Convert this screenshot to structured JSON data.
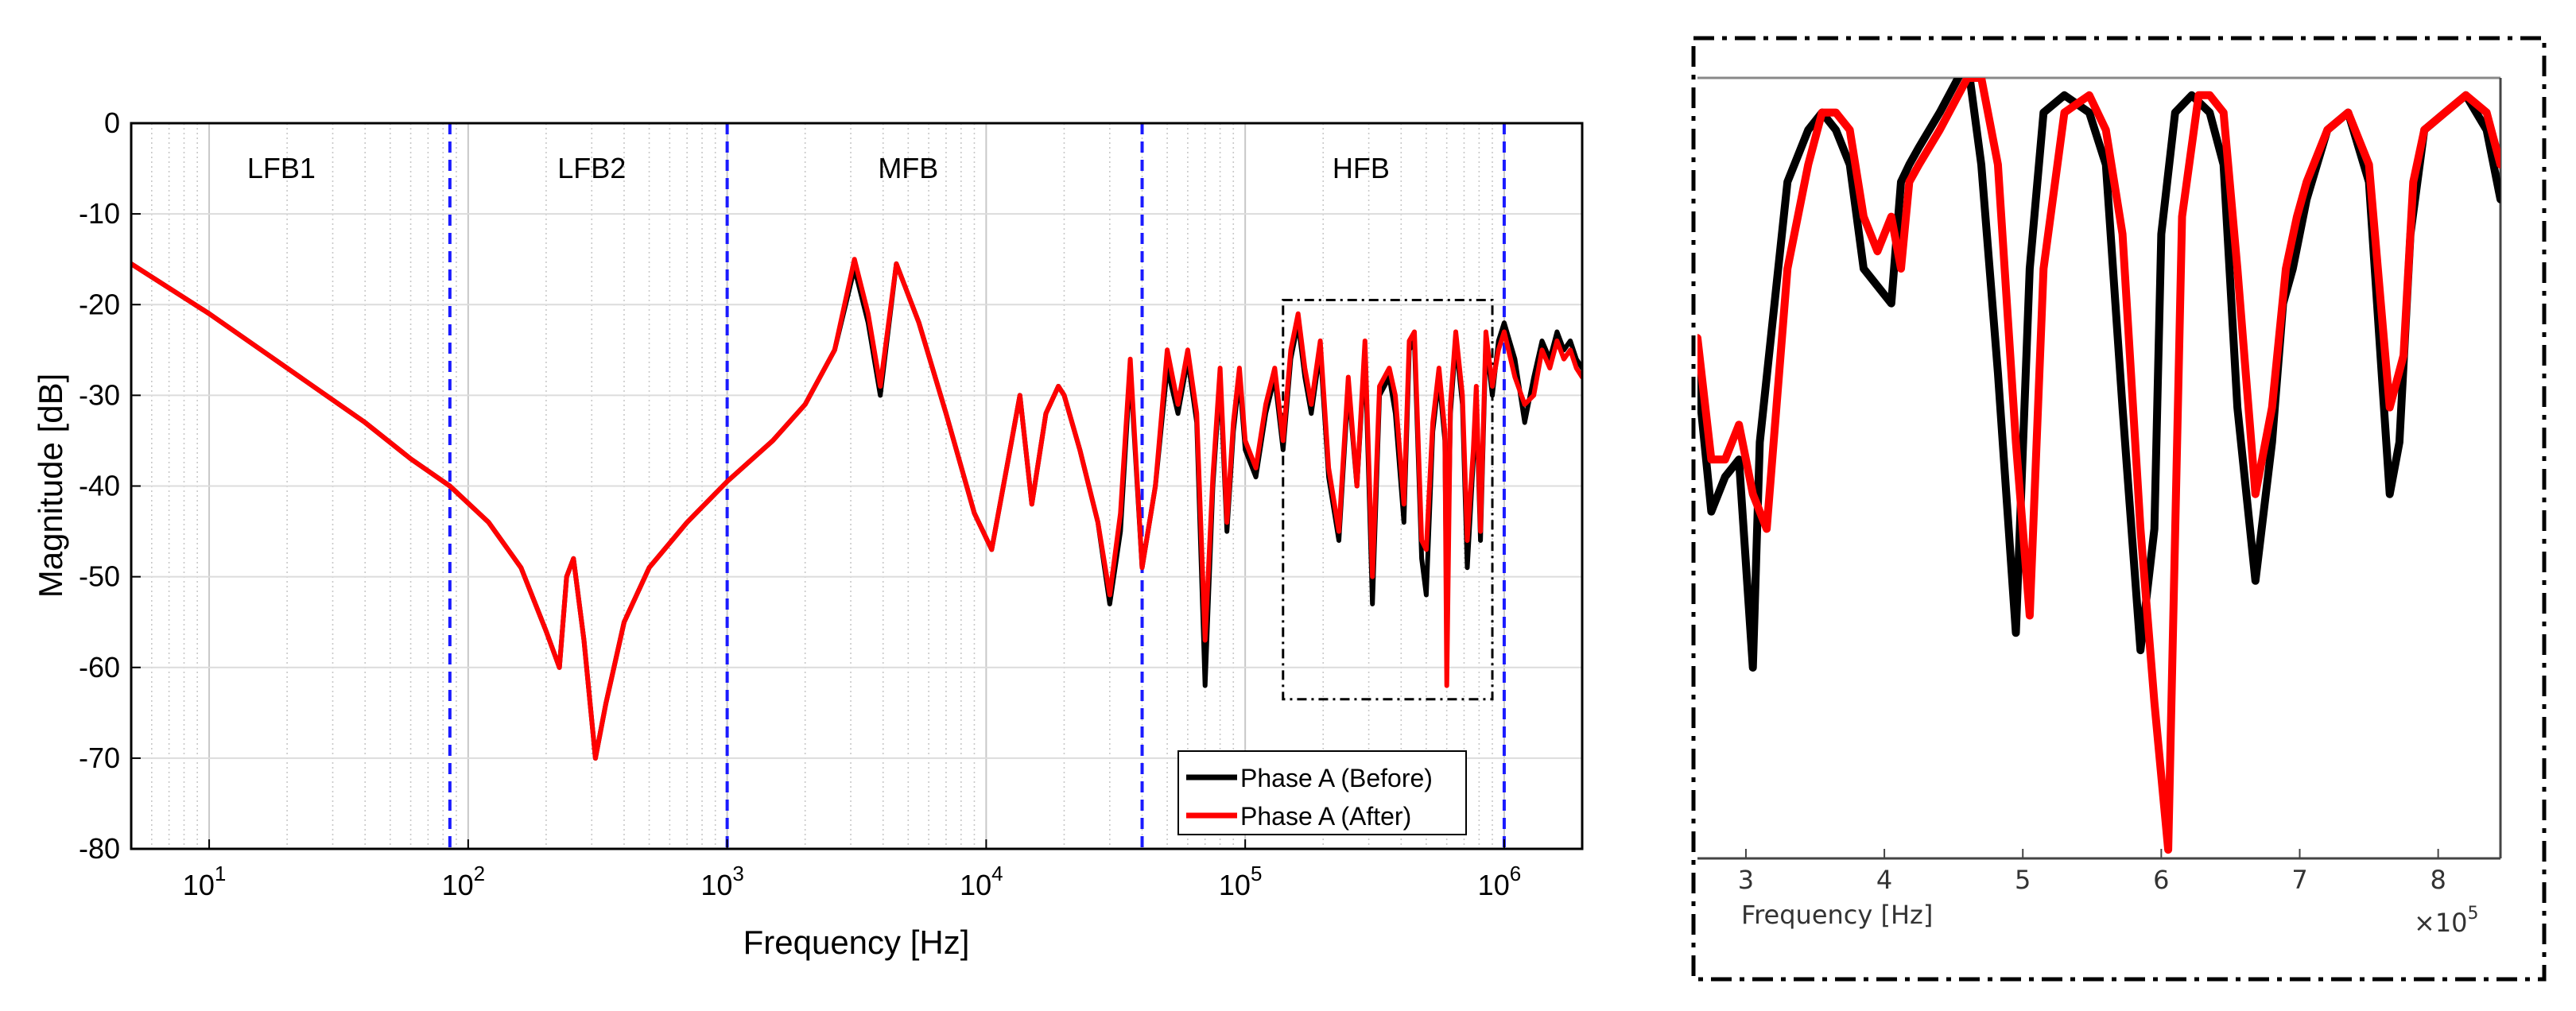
{
  "chart_data": [
    {
      "type": "line",
      "title": "",
      "xlabel": "Frequency [Hz]",
      "ylabel": "Magnitude [dB]",
      "xscale": "log",
      "xlim": [
        5,
        2000000
      ],
      "ylim": [
        -80,
        0
      ],
      "grid": true,
      "x_ticks": [
        {
          "value": 10,
          "base": "10",
          "exp": "1"
        },
        {
          "value": 100,
          "base": "10",
          "exp": "2"
        },
        {
          "value": 1000,
          "base": "10",
          "exp": "3"
        },
        {
          "value": 10000,
          "base": "10",
          "exp": "4"
        },
        {
          "value": 100000,
          "base": "10",
          "exp": "5"
        },
        {
          "value": 1000000,
          "base": "10",
          "exp": "6"
        }
      ],
      "y_ticks": [
        0,
        -10,
        -20,
        -30,
        -40,
        -50,
        -60,
        -70,
        -80
      ],
      "y_tick_labels": [
        "0",
        "-10",
        "-20",
        "-30",
        "-40",
        "-50",
        "-60",
        "-70",
        "-80"
      ],
      "band_boundaries_hz": [
        85,
        1000,
        40000,
        1000000
      ],
      "band_labels": [
        {
          "text": "LFB1",
          "freq_hz": 19,
          "db": -5
        },
        {
          "text": "LFB2",
          "freq_hz": 300,
          "db": -5
        },
        {
          "text": "MFB",
          "freq_hz": 5000,
          "db": -5
        },
        {
          "text": "HFB",
          "freq_hz": 280000,
          "db": -5
        }
      ],
      "zoom_box": {
        "x_range_hz": [
          140000,
          900000
        ],
        "y_range_db": [
          -63.5,
          -19.5
        ]
      },
      "legend": {
        "position": "bottom-right",
        "entries": [
          "Phase A (Before)",
          "Phase A (After)"
        ]
      },
      "series": [
        {
          "name": "Phase A (Before)",
          "color": "#000000",
          "x": [
            5,
            10,
            20,
            40,
            60,
            85,
            120,
            160,
            200,
            225,
            240,
            255,
            280,
            310,
            340,
            400,
            500,
            700,
            1000,
            1500,
            2000,
            2600,
            3100,
            3500,
            3900,
            4500,
            5500,
            7000,
            9000,
            10500,
            12000,
            13500,
            15000,
            17000,
            19000,
            20000,
            23000,
            27000,
            30000,
            33000,
            36000,
            40000,
            45000,
            50000,
            55000,
            60000,
            65000,
            70000,
            75000,
            80000,
            85000,
            90000,
            95000,
            100000,
            110000,
            120000,
            130000,
            140000,
            150000,
            160000,
            170000,
            180000,
            195000,
            210000,
            230000,
            250000,
            270000,
            290000,
            310000,
            330000,
            360000,
            380000,
            410000,
            430000,
            450000,
            480000,
            500000,
            530000,
            560000,
            590000,
            600000,
            620000,
            650000,
            690000,
            720000,
            760000,
            780000,
            810000,
            850000,
            900000,
            950000,
            1000000,
            1100000,
            1200000,
            1300000,
            1400000,
            1500000,
            1600000,
            1700000,
            1800000,
            1900000,
            2000000
          ],
          "y": [
            -15.5,
            -21,
            -27,
            -33,
            -37,
            -40,
            -44,
            -49,
            -56,
            -60,
            -50,
            -48,
            -57,
            -70,
            -64,
            -55,
            -49,
            -44,
            -39.5,
            -35,
            -31,
            -25,
            -16,
            -22,
            -30,
            -15.5,
            -22,
            -32,
            -43,
            -47,
            -38,
            -30,
            -42,
            -32,
            -29,
            -30,
            -36,
            -44,
            -53,
            -45,
            -27,
            -49,
            -40,
            -27,
            -32,
            -26,
            -33,
            -62,
            -40,
            -28,
            -45,
            -34,
            -28,
            -36,
            -39,
            -32,
            -28,
            -36,
            -26,
            -22,
            -28,
            -32,
            -25,
            -39,
            -46,
            -29,
            -40,
            -25,
            -53,
            -30,
            -28,
            -32,
            -44,
            -25,
            -24,
            -48,
            -52,
            -34,
            -28,
            -35,
            -55,
            -32,
            -24,
            -31,
            -49,
            -37,
            -30,
            -46,
            -24,
            -30,
            -24,
            -22,
            -26,
            -33,
            -28,
            -24,
            -26,
            -23,
            -25,
            -24,
            -26,
            -27
          ]
        },
        {
          "name": "Phase A (After)",
          "color": "#ff0000",
          "x": [
            5,
            10,
            20,
            40,
            60,
            85,
            120,
            160,
            200,
            225,
            240,
            255,
            280,
            310,
            340,
            400,
            500,
            700,
            1000,
            1500,
            2000,
            2600,
            3100,
            3500,
            3900,
            4500,
            5500,
            7000,
            9000,
            10500,
            12000,
            13500,
            15000,
            17000,
            19000,
            20000,
            23000,
            27000,
            30000,
            33000,
            36000,
            40000,
            45000,
            50000,
            55000,
            60000,
            65000,
            70000,
            75000,
            80000,
            85000,
            90000,
            95000,
            100000,
            110000,
            120000,
            130000,
            140000,
            150000,
            160000,
            170000,
            180000,
            195000,
            210000,
            230000,
            250000,
            270000,
            290000,
            310000,
            330000,
            360000,
            380000,
            410000,
            430000,
            450000,
            480000,
            500000,
            530000,
            560000,
            590000,
            600000,
            620000,
            650000,
            690000,
            720000,
            760000,
            780000,
            810000,
            850000,
            900000,
            950000,
            1000000,
            1100000,
            1200000,
            1300000,
            1400000,
            1500000,
            1600000,
            1700000,
            1800000,
            1900000,
            2000000
          ],
          "y": [
            -15.5,
            -21,
            -27,
            -33,
            -37,
            -40,
            -44,
            -49,
            -56,
            -60,
            -50,
            -48,
            -57,
            -70,
            -64,
            -55,
            -49,
            -44,
            -39.5,
            -35,
            -31,
            -25,
            -15,
            -21,
            -29,
            -15.5,
            -22,
            -32,
            -43,
            -47,
            -38,
            -30,
            -42,
            -32,
            -29,
            -30,
            -36,
            -44,
            -52,
            -43,
            -26,
            -49,
            -40,
            -25,
            -31,
            -25,
            -32,
            -57,
            -39,
            -27,
            -44,
            -33,
            -27,
            -35,
            -38,
            -31,
            -27,
            -35,
            -25,
            -21,
            -27,
            -31,
            -24,
            -38,
            -45,
            -28,
            -40,
            -24,
            -50,
            -29,
            -27,
            -30,
            -42,
            -24,
            -23,
            -46,
            -47,
            -33,
            -27,
            -34,
            -62,
            -31,
            -23,
            -30,
            -46,
            -36,
            -29,
            -45,
            -23,
            -29,
            -25,
            -23,
            -28,
            -31,
            -30,
            -25,
            -27,
            -24,
            -26,
            -25,
            -27,
            -28
          ]
        }
      ]
    },
    {
      "type": "line",
      "title": "",
      "xlabel": "Frequency [Hz]",
      "x_multiplier_label": "×10",
      "x_multiplier_exp": "5",
      "xlim": [
        2.65,
        8.45
      ],
      "ylim": [
        -64,
        -19
      ],
      "x_ticks": [
        3,
        4,
        5,
        6,
        7,
        8
      ],
      "x_tick_labels": [
        "3",
        "4",
        "5",
        "6",
        "7",
        "8"
      ],
      "series": [
        {
          "name": "Phase A (Before)",
          "color": "#000000",
          "x": [
            2.65,
            2.75,
            2.85,
            2.95,
            3.05,
            3.1,
            3.18,
            3.3,
            3.45,
            3.55,
            3.65,
            3.75,
            3.85,
            3.95,
            4.05,
            4.12,
            4.18,
            4.25,
            4.4,
            4.6,
            4.7,
            4.82,
            4.95,
            5.05,
            5.15,
            5.3,
            5.48,
            5.6,
            5.72,
            5.85,
            5.95,
            6.0,
            6.1,
            6.22,
            6.35,
            6.45,
            6.55,
            6.68,
            6.8,
            6.88,
            6.95,
            7.05,
            7.2,
            7.35,
            7.5,
            7.65,
            7.72,
            7.8,
            7.9,
            8.05,
            8.2,
            8.35,
            8.45
          ],
          "y": [
            -36,
            -44,
            -42,
            -41,
            -53,
            -40,
            -34,
            -25,
            -22,
            -21,
            -22,
            -24,
            -30,
            -31,
            -32,
            -25,
            -24,
            -23,
            -21,
            -18,
            -24,
            -36,
            -51,
            -30,
            -21,
            -20,
            -21,
            -24,
            -38,
            -52,
            -45,
            -28,
            -21,
            -20,
            -21,
            -24,
            -38,
            -48,
            -40,
            -32,
            -30,
            -26,
            -22,
            -21,
            -25,
            -43,
            -40,
            -28,
            -22,
            -21,
            -20,
            -22,
            -26
          ]
        },
        {
          "name": "Phase A (After)",
          "color": "#ff0000",
          "x": [
            2.65,
            2.75,
            2.85,
            2.95,
            3.05,
            3.15,
            3.22,
            3.3,
            3.45,
            3.55,
            3.65,
            3.75,
            3.85,
            3.95,
            4.05,
            4.12,
            4.18,
            4.25,
            4.4,
            4.6,
            4.7,
            4.82,
            4.95,
            5.05,
            5.15,
            5.3,
            5.48,
            5.6,
            5.72,
            5.85,
            5.95,
            6.05,
            6.15,
            6.27,
            6.35,
            6.45,
            6.55,
            6.68,
            6.8,
            6.9,
            6.98,
            7.05,
            7.2,
            7.35,
            7.5,
            7.65,
            7.75,
            7.82,
            7.9,
            8.05,
            8.2,
            8.35,
            8.45
          ],
          "y": [
            -34,
            -41,
            -41,
            -39,
            -43,
            -45,
            -38,
            -30,
            -24,
            -21,
            -21,
            -22,
            -27,
            -29,
            -27,
            -30,
            -25,
            -24,
            -22,
            -19,
            -19,
            -24,
            -40,
            -50,
            -30,
            -21,
            -20,
            -22,
            -28,
            -45,
            -55,
            -63.5,
            -27,
            -20,
            -20,
            -21,
            -30,
            -43,
            -38,
            -30,
            -27,
            -25,
            -22,
            -21,
            -24,
            -38,
            -35,
            -25,
            -22,
            -21,
            -20,
            -21,
            -24
          ]
        }
      ]
    }
  ]
}
